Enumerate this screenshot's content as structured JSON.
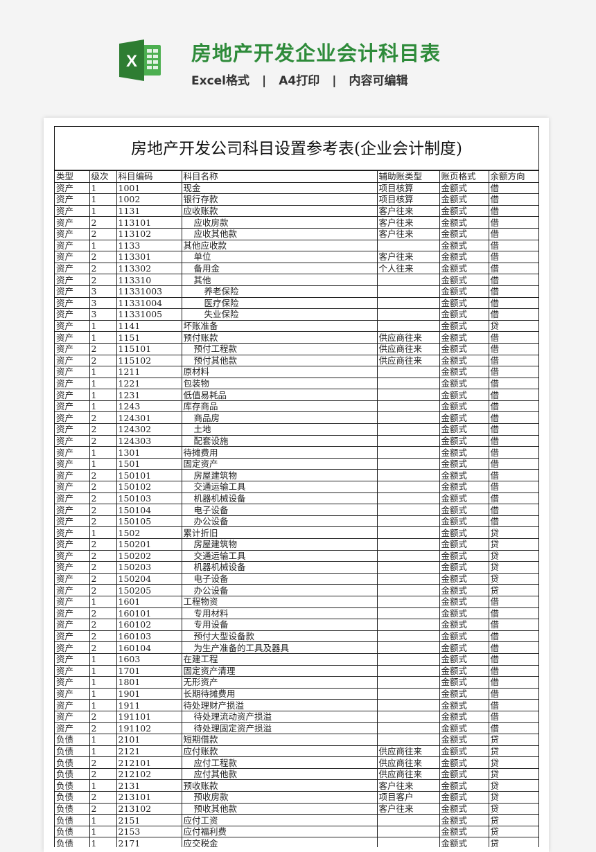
{
  "header": {
    "icon": "excel-icon",
    "title": "房地产开发企业会计科目表",
    "features": [
      "Excel格式",
      "A4打印",
      "内容可编辑"
    ],
    "separator": "|",
    "accent_color": "#2e8b3a"
  },
  "sheet": {
    "title": "房地产开发公司科目设置参考表(企业会计制度)",
    "columns": [
      "类型",
      "级次",
      "科目编码",
      "科目名称",
      "辅助账类型",
      "账页格式",
      "余额方向"
    ],
    "rows": [
      [
        "资产",
        "1",
        "1001",
        "现金",
        "项目核算",
        "金额式",
        "借"
      ],
      [
        "资产",
        "1",
        "1002",
        "银行存款",
        "项目核算",
        "金额式",
        "借"
      ],
      [
        "资产",
        "1",
        "1131",
        "应收账款",
        "客户往来",
        "金额式",
        "借"
      ],
      [
        "资产",
        "2",
        "113101",
        "应收房款",
        "客户往来",
        "金额式",
        "借"
      ],
      [
        "资产",
        "2",
        "113102",
        "应收其他款",
        "客户往来",
        "金额式",
        "借"
      ],
      [
        "资产",
        "1",
        "1133",
        "其他应收款",
        "",
        "金额式",
        "借"
      ],
      [
        "资产",
        "2",
        "113301",
        "单位",
        "客户往来",
        "金额式",
        "借"
      ],
      [
        "资产",
        "2",
        "113302",
        "备用金",
        "个人往来",
        "金额式",
        "借"
      ],
      [
        "资产",
        "2",
        "113310",
        "其他",
        "",
        "金额式",
        "借"
      ],
      [
        "资产",
        "3",
        "11331003",
        "养老保险",
        "",
        "金额式",
        "借"
      ],
      [
        "资产",
        "3",
        "11331004",
        "医疗保险",
        "",
        "金额式",
        "借"
      ],
      [
        "资产",
        "3",
        "11331005",
        "失业保险",
        "",
        "金额式",
        "借"
      ],
      [
        "资产",
        "1",
        "1141",
        "坏账准备",
        "",
        "金额式",
        "贷"
      ],
      [
        "资产",
        "1",
        "1151",
        "预付账款",
        "供应商往来",
        "金额式",
        "借"
      ],
      [
        "资产",
        "2",
        "115101",
        "预付工程款",
        "供应商往来",
        "金额式",
        "借"
      ],
      [
        "资产",
        "2",
        "115102",
        "预付其他款",
        "供应商往来",
        "金额式",
        "借"
      ],
      [
        "资产",
        "1",
        "1211",
        "原材料",
        "",
        "金额式",
        "借"
      ],
      [
        "资产",
        "1",
        "1221",
        "包装物",
        "",
        "金额式",
        "借"
      ],
      [
        "资产",
        "1",
        "1231",
        "低值易耗品",
        "",
        "金额式",
        "借"
      ],
      [
        "资产",
        "1",
        "1243",
        "库存商品",
        "",
        "金额式",
        "借"
      ],
      [
        "资产",
        "2",
        "124301",
        "商品房",
        "",
        "金额式",
        "借"
      ],
      [
        "资产",
        "2",
        "124302",
        "土地",
        "",
        "金额式",
        "借"
      ],
      [
        "资产",
        "2",
        "124303",
        "配套设施",
        "",
        "金额式",
        "借"
      ],
      [
        "资产",
        "1",
        "1301",
        "待摊费用",
        "",
        "金额式",
        "借"
      ],
      [
        "资产",
        "1",
        "1501",
        "固定资产",
        "",
        "金额式",
        "借"
      ],
      [
        "资产",
        "2",
        "150101",
        "房屋建筑物",
        "",
        "金额式",
        "借"
      ],
      [
        "资产",
        "2",
        "150102",
        "交通运输工具",
        "",
        "金额式",
        "借"
      ],
      [
        "资产",
        "2",
        "150103",
        "机器机械设备",
        "",
        "金额式",
        "借"
      ],
      [
        "资产",
        "2",
        "150104",
        "电子设备",
        "",
        "金额式",
        "借"
      ],
      [
        "资产",
        "2",
        "150105",
        "办公设备",
        "",
        "金额式",
        "借"
      ],
      [
        "资产",
        "1",
        "1502",
        "累计折旧",
        "",
        "金额式",
        "贷"
      ],
      [
        "资产",
        "2",
        "150201",
        "房屋建筑物",
        "",
        "金额式",
        "贷"
      ],
      [
        "资产",
        "2",
        "150202",
        "交通运输工具",
        "",
        "金额式",
        "贷"
      ],
      [
        "资产",
        "2",
        "150203",
        "机器机械设备",
        "",
        "金额式",
        "贷"
      ],
      [
        "资产",
        "2",
        "150204",
        "电子设备",
        "",
        "金额式",
        "贷"
      ],
      [
        "资产",
        "2",
        "150205",
        "办公设备",
        "",
        "金额式",
        "贷"
      ],
      [
        "资产",
        "1",
        "1601",
        "工程物资",
        "",
        "金额式",
        "借"
      ],
      [
        "资产",
        "2",
        "160101",
        "专用材料",
        "",
        "金额式",
        "借"
      ],
      [
        "资产",
        "2",
        "160102",
        "专用设备",
        "",
        "金额式",
        "借"
      ],
      [
        "资产",
        "2",
        "160103",
        "预付大型设备款",
        "",
        "金额式",
        "借"
      ],
      [
        "资产",
        "2",
        "160104",
        "为生产准备的工具及器具",
        "",
        "金额式",
        "借"
      ],
      [
        "资产",
        "1",
        "1603",
        "在建工程",
        "",
        "金额式",
        "借"
      ],
      [
        "资产",
        "1",
        "1701",
        "固定资产清理",
        "",
        "金额式",
        "借"
      ],
      [
        "资产",
        "1",
        "1801",
        "无形资产",
        "",
        "金额式",
        "借"
      ],
      [
        "资产",
        "1",
        "1901",
        "长期待摊费用",
        "",
        "金额式",
        "借"
      ],
      [
        "资产",
        "1",
        "1911",
        "待处理财产损溢",
        "",
        "金额式",
        "借"
      ],
      [
        "资产",
        "2",
        "191101",
        "待处理流动资产损溢",
        "",
        "金额式",
        "借"
      ],
      [
        "资产",
        "2",
        "191102",
        "待处理固定资产损溢",
        "",
        "金额式",
        "借"
      ],
      [
        "负债",
        "1",
        "2101",
        "短期借款",
        "",
        "金额式",
        "贷"
      ],
      [
        "负债",
        "1",
        "2121",
        "应付账款",
        "供应商往来",
        "金额式",
        "贷"
      ],
      [
        "负债",
        "2",
        "212101",
        "应付工程款",
        "供应商往来",
        "金额式",
        "贷"
      ],
      [
        "负债",
        "2",
        "212102",
        "应付其他款",
        "供应商往来",
        "金额式",
        "贷"
      ],
      [
        "负债",
        "1",
        "2131",
        "预收账款",
        "客户往来",
        "金额式",
        "贷"
      ],
      [
        "负债",
        "2",
        "213101",
        "预收房款",
        "项目客户",
        "金额式",
        "贷"
      ],
      [
        "负债",
        "2",
        "213102",
        "预收其他款",
        "客户往来",
        "金额式",
        "贷"
      ],
      [
        "负债",
        "1",
        "2151",
        "应付工资",
        "",
        "金额式",
        "贷"
      ],
      [
        "负债",
        "1",
        "2153",
        "应付福利费",
        "",
        "金额式",
        "贷"
      ],
      [
        "负债",
        "1",
        "2171",
        "应交税金",
        "",
        "金额式",
        "贷"
      ]
    ]
  }
}
